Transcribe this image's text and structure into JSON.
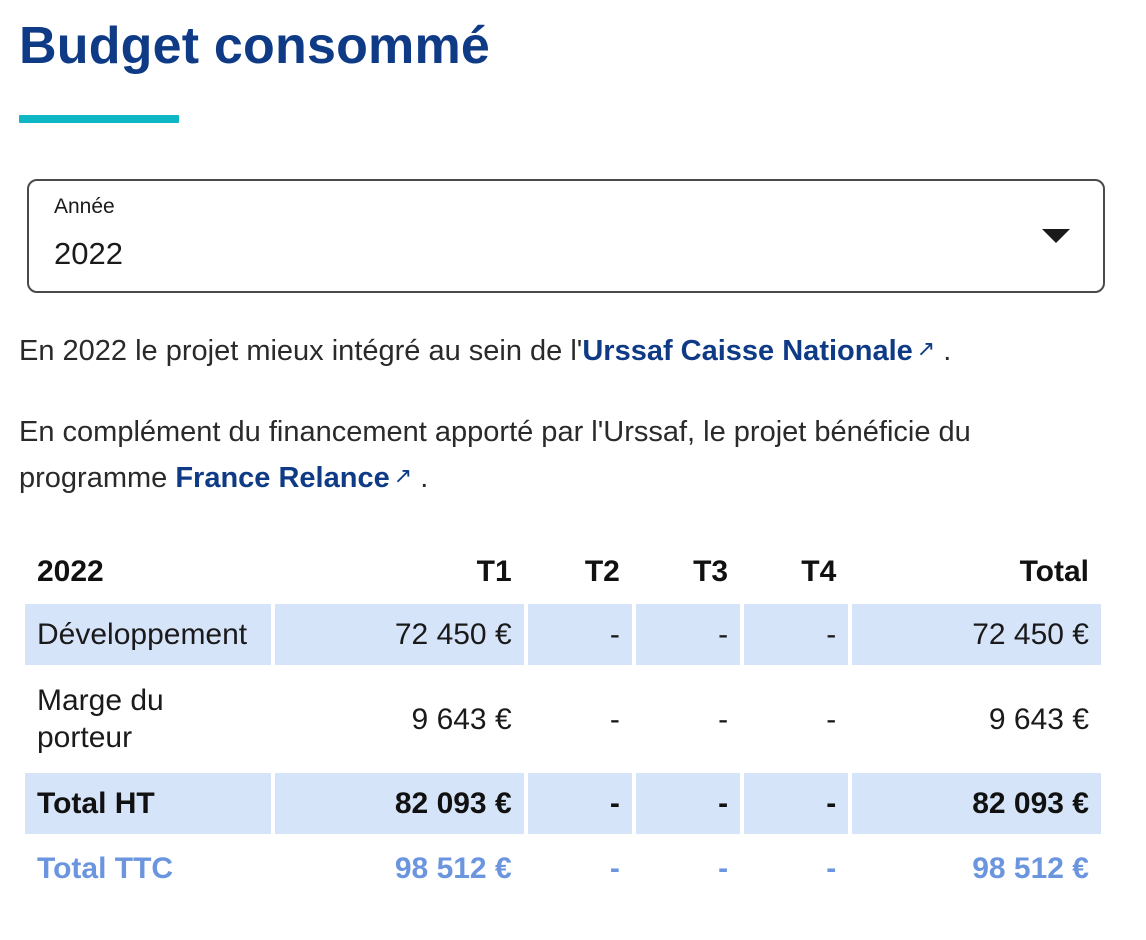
{
  "page": {
    "title": "Budget consommé"
  },
  "year_select": {
    "label": "Année",
    "value": "2022",
    "icon": "caret-down-icon"
  },
  "paragraphs": {
    "p1_before": "En 2022 le projet mieux intégré au sein de l'",
    "p1_link": "Urssaf Caisse Nationale",
    "p1_after": ".",
    "p2_before": "En complément du financement apporté par l'Urssaf, le projet bénéficie du programme ",
    "p2_link": "France Relance",
    "p2_after": ".",
    "external_link_icon": "↗"
  },
  "table": {
    "headers": [
      "2022",
      "T1",
      "T2",
      "T3",
      "T4",
      "Total"
    ],
    "rows": [
      {
        "label": "Développement",
        "cells": [
          "72 450 €",
          "-",
          "-",
          "-",
          "72 450 €"
        ]
      },
      {
        "label": "Marge du porteur",
        "cells": [
          "9 643 €",
          "-",
          "-",
          "-",
          "9 643 €"
        ]
      },
      {
        "label": "Total HT",
        "cells": [
          "82 093 €",
          "-",
          "-",
          "-",
          "82 093 €"
        ]
      },
      {
        "label": "Total TTC",
        "cells": [
          "98 512 €",
          "-",
          "-",
          "-",
          "98 512 €"
        ]
      }
    ]
  },
  "colors": {
    "title": "#0f3b86",
    "underline_accent": "#0fb6c4",
    "row_shade": "#d6e4fa",
    "total_ttc": "#6b95de"
  }
}
